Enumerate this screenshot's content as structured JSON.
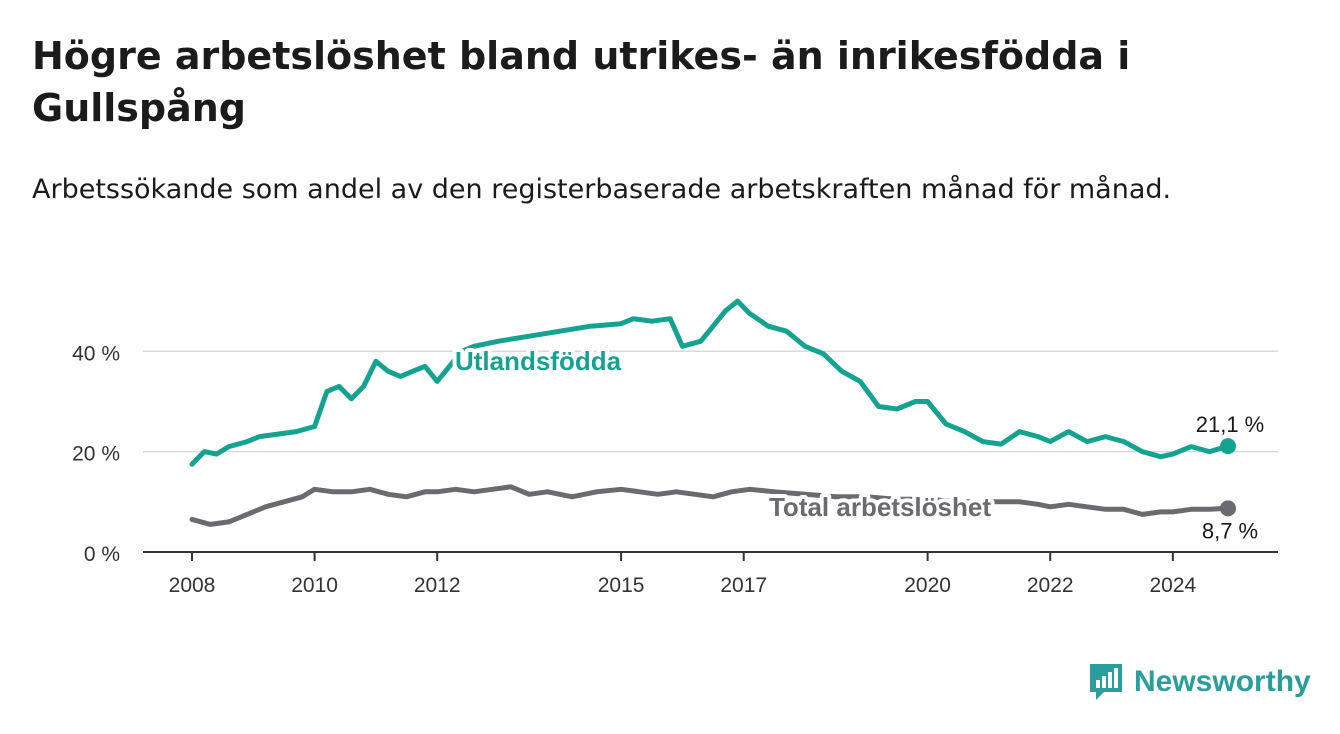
{
  "header": {
    "title": "Högre arbetslöshet bland utrikes- än inrikesfödda i Gullspång",
    "subtitle": "Arbetssökande som andel av den registerbaserade arbetskraften månad för månad."
  },
  "brand": {
    "name": "Newsworthy",
    "icon": "newsworthy-logo-icon",
    "color": "#2a9d9d"
  },
  "chart_data": {
    "type": "line",
    "ylim": [
      0,
      55
    ],
    "yticks": [
      0,
      20,
      40
    ],
    "ytick_labels": [
      "0 %",
      "20 %",
      "40 %"
    ],
    "xlim": [
      2008,
      2025.5
    ],
    "xticks": [
      2008,
      2010,
      2012,
      2015,
      2017,
      2020,
      2022,
      2024
    ],
    "xtick_labels": [
      "2008",
      "2010",
      "2012",
      "2015",
      "2017",
      "2020",
      "2022",
      "2024"
    ],
    "grid": true,
    "series": [
      {
        "name": "Utlandsfödda",
        "color": "#14a390",
        "end_label": "21,1 %",
        "x": [
          2008.0,
          2008.2,
          2008.4,
          2008.6,
          2008.9,
          2009.1,
          2009.4,
          2009.7,
          2010.0,
          2010.2,
          2010.4,
          2010.6,
          2010.8,
          2011.0,
          2011.2,
          2011.4,
          2011.6,
          2011.8,
          2012.0,
          2012.2,
          2012.4,
          2012.6,
          2013.0,
          2013.5,
          2014.0,
          2014.5,
          2015.0,
          2015.2,
          2015.5,
          2015.8,
          2016.0,
          2016.3,
          2016.5,
          2016.7,
          2016.9,
          2017.1,
          2017.4,
          2017.7,
          2018.0,
          2018.3,
          2018.6,
          2018.9,
          2019.2,
          2019.5,
          2019.8,
          2020.0,
          2020.3,
          2020.6,
          2020.9,
          2021.2,
          2021.5,
          2021.8,
          2022.0,
          2022.3,
          2022.6,
          2022.9,
          2023.2,
          2023.5,
          2023.8,
          2024.0,
          2024.3,
          2024.6,
          2024.9
        ],
        "y": [
          17.5,
          20,
          19.5,
          21,
          22,
          23,
          23.5,
          24,
          25,
          32,
          33,
          30.5,
          33,
          38,
          36,
          35,
          36,
          37,
          34,
          37,
          40,
          41,
          42,
          43,
          44,
          45,
          45.5,
          46.5,
          46,
          46.5,
          41,
          42,
          45,
          48,
          50,
          47.5,
          45,
          44,
          41,
          39.5,
          36,
          34,
          29,
          28.5,
          30,
          30,
          25.5,
          24,
          22,
          21.5,
          24,
          23,
          22,
          24,
          22,
          23,
          22,
          20,
          19,
          19.5,
          21,
          20,
          21.1
        ]
      },
      {
        "name": "Total arbetslöshet",
        "color": "#6b6a70",
        "end_label": "8,7 %",
        "x": [
          2008.0,
          2008.3,
          2008.6,
          2008.9,
          2009.2,
          2009.5,
          2009.8,
          2010.0,
          2010.3,
          2010.6,
          2010.9,
          2011.2,
          2011.5,
          2011.8,
          2012.0,
          2012.3,
          2012.6,
          2012.9,
          2013.2,
          2013.5,
          2013.8,
          2014.2,
          2014.6,
          2015.0,
          2015.3,
          2015.6,
          2015.9,
          2016.2,
          2016.5,
          2016.8,
          2017.1,
          2017.5,
          2018.0,
          2018.5,
          2019.0,
          2019.5,
          2020.0,
          2020.5,
          2021.0,
          2021.5,
          2021.8,
          2022.0,
          2022.3,
          2022.6,
          2022.9,
          2023.2,
          2023.5,
          2023.8,
          2024.0,
          2024.3,
          2024.6,
          2024.9
        ],
        "y": [
          6.5,
          5.5,
          6,
          7.5,
          9,
          10,
          11,
          12.5,
          12,
          12,
          12.5,
          11.5,
          11,
          12,
          12,
          12.5,
          12,
          12.5,
          13,
          11.5,
          12,
          11,
          12,
          12.5,
          12,
          11.5,
          12,
          11.5,
          11,
          12,
          12.5,
          12,
          11.5,
          11,
          11,
          10.5,
          10.5,
          10,
          10,
          10,
          9.5,
          9,
          9.5,
          9,
          8.5,
          8.5,
          7.5,
          8,
          8,
          8.5,
          8.5,
          8.7
        ]
      }
    ]
  }
}
